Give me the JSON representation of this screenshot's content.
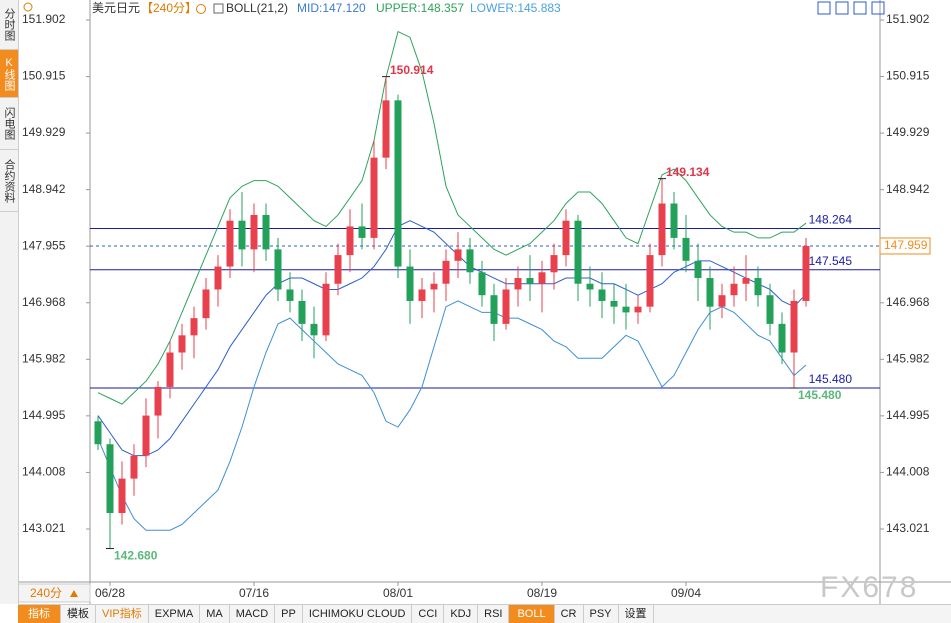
{
  "side_tabs": [
    "分时图",
    "K线图",
    "闪电图",
    "合约资料"
  ],
  "header": {
    "symbol": "美元日元",
    "period": "【240分】",
    "indicator": "BOLL(21,2)",
    "mid": "MID:147.120",
    "upper": "UPPER:148.357",
    "lower": "LOWER:145.883"
  },
  "period_button": "240分",
  "toolbar": [
    "指标",
    "模板",
    "VIP指标",
    "EXPMA",
    "MA",
    "MACD",
    "PP",
    "ICHIMOKU CLOUD",
    "CCI",
    "KDJ",
    "RSI",
    "BOLL",
    "CR",
    "PSY",
    "设置"
  ],
  "watermark": "FX678",
  "chart_data": {
    "type": "candlestick",
    "categories": [
      null,
      "06/28",
      null,
      null,
      null,
      null,
      null,
      null,
      null,
      null,
      null,
      null,
      null,
      "07/16",
      null,
      null,
      null,
      null,
      null,
      null,
      null,
      null,
      null,
      null,
      null,
      "08/01",
      null,
      null,
      null,
      null,
      null,
      null,
      null,
      null,
      null,
      null,
      null,
      "08/19",
      null,
      null,
      null,
      null,
      null,
      null,
      null,
      null,
      null,
      null,
      null,
      "09/04",
      null,
      null,
      null,
      null,
      null,
      null,
      null,
      null,
      null,
      null
    ],
    "open": [
      144.9,
      144.5,
      143.3,
      143.9,
      144.3,
      145.0,
      145.5,
      146.1,
      146.4,
      146.7,
      147.2,
      147.6,
      148.4,
      147.9,
      148.5,
      147.9,
      147.2,
      147.0,
      146.6,
      146.4,
      147.3,
      147.8,
      148.3,
      148.1,
      149.5,
      150.5,
      147.6,
      147.0,
      147.2,
      147.3,
      147.7,
      147.9,
      147.5,
      147.1,
      146.6,
      147.2,
      147.4,
      147.3,
      147.5,
      147.8,
      148.4,
      147.3,
      147.2,
      147.0,
      146.9,
      146.8,
      146.9,
      147.8,
      148.7,
      148.1,
      147.7,
      147.4,
      146.9,
      147.1,
      147.3,
      147.4,
      147.1,
      146.6,
      146.1,
      147.0
    ],
    "high": [
      145.0,
      144.6,
      144.2,
      144.5,
      145.3,
      145.6,
      146.3,
      146.6,
      146.9,
      147.4,
      147.8,
      148.6,
      148.9,
      148.7,
      148.7,
      148.1,
      147.5,
      147.2,
      146.9,
      147.5,
      148.0,
      148.6,
      148.7,
      149.8,
      150.914,
      150.6,
      147.9,
      147.4,
      147.5,
      147.9,
      148.2,
      148.1,
      147.7,
      147.3,
      147.4,
      147.6,
      147.8,
      147.7,
      148.0,
      148.6,
      148.5,
      147.6,
      147.5,
      147.3,
      147.3,
      147.1,
      148.0,
      149.134,
      148.9,
      148.5,
      148.0,
      147.6,
      147.3,
      147.6,
      147.8,
      147.6,
      147.3,
      146.8,
      147.2,
      148.1
    ],
    "low": [
      144.4,
      142.68,
      143.1,
      143.6,
      144.1,
      144.6,
      145.3,
      145.8,
      146.0,
      146.5,
      146.9,
      147.4,
      147.6,
      147.5,
      147.7,
      147.0,
      146.8,
      146.3,
      146.0,
      146.3,
      147.1,
      147.5,
      147.9,
      147.9,
      149.3,
      147.4,
      146.6,
      146.7,
      146.8,
      147.0,
      147.4,
      147.3,
      146.9,
      146.3,
      146.5,
      146.9,
      147.0,
      146.8,
      147.2,
      147.6,
      147.0,
      146.9,
      146.7,
      146.6,
      146.5,
      146.6,
      146.8,
      147.6,
      147.9,
      147.5,
      147.0,
      146.5,
      146.7,
      146.9,
      147.0,
      146.9,
      146.4,
      145.9,
      145.48,
      146.9
    ],
    "close": [
      144.5,
      143.3,
      143.9,
      144.3,
      145.0,
      145.5,
      146.1,
      146.4,
      146.7,
      147.2,
      147.6,
      148.4,
      147.9,
      148.5,
      147.9,
      147.2,
      147.0,
      146.6,
      146.4,
      147.3,
      147.8,
      148.3,
      148.1,
      149.5,
      150.5,
      147.6,
      147.0,
      147.2,
      147.3,
      147.7,
      147.9,
      147.5,
      147.1,
      146.6,
      147.2,
      147.4,
      147.3,
      147.5,
      147.8,
      148.4,
      147.3,
      147.2,
      147.0,
      146.9,
      146.8,
      146.9,
      147.8,
      148.7,
      148.1,
      147.7,
      147.4,
      146.9,
      147.1,
      147.3,
      147.4,
      147.1,
      146.6,
      146.1,
      147.0,
      147.959
    ],
    "up_color": "#e8414e",
    "down_color": "#23a05a",
    "series": [
      {
        "name": "UPPER",
        "color": "#2ea35c",
        "values": [
          145.4,
          145.3,
          145.2,
          145.4,
          145.6,
          145.9,
          146.3,
          146.8,
          147.3,
          147.8,
          148.3,
          148.8,
          149.0,
          149.1,
          149.1,
          149.0,
          148.8,
          148.6,
          148.4,
          148.3,
          148.5,
          148.8,
          149.1,
          149.8,
          150.9,
          151.7,
          151.6,
          151.0,
          150.1,
          149.0,
          148.5,
          148.3,
          148.1,
          147.9,
          147.8,
          147.9,
          148.0,
          148.2,
          148.4,
          148.7,
          148.9,
          148.9,
          148.7,
          148.4,
          148.1,
          148.0,
          148.6,
          149.2,
          149.3,
          149.1,
          148.8,
          148.5,
          148.3,
          148.2,
          148.2,
          148.1,
          148.1,
          148.2,
          148.2,
          148.357
        ]
      },
      {
        "name": "MID",
        "color": "#2b5fcc",
        "values": [
          145.0,
          144.7,
          144.4,
          144.3,
          144.3,
          144.4,
          144.6,
          144.9,
          145.2,
          145.5,
          145.8,
          146.2,
          146.5,
          146.8,
          147.1,
          147.3,
          147.4,
          147.4,
          147.3,
          147.2,
          147.2,
          147.3,
          147.4,
          147.6,
          147.9,
          148.3,
          148.4,
          148.3,
          148.2,
          148.0,
          147.8,
          147.6,
          147.5,
          147.4,
          147.3,
          147.3,
          147.3,
          147.3,
          147.3,
          147.4,
          147.4,
          147.4,
          147.3,
          147.3,
          147.2,
          147.1,
          147.2,
          147.3,
          147.5,
          147.6,
          147.7,
          147.7,
          147.6,
          147.5,
          147.4,
          147.3,
          147.2,
          147.0,
          146.9,
          147.12
        ]
      },
      {
        "name": "LOWER",
        "color": "#3d8fd6",
        "values": [
          144.6,
          144.1,
          143.6,
          143.2,
          143.0,
          143.0,
          143.0,
          143.1,
          143.3,
          143.5,
          143.7,
          144.2,
          144.8,
          145.5,
          146.1,
          146.6,
          146.7,
          146.5,
          146.3,
          146.1,
          145.9,
          145.8,
          145.7,
          145.4,
          144.9,
          144.8,
          145.1,
          145.5,
          146.2,
          146.9,
          147.0,
          146.9,
          146.8,
          146.8,
          146.7,
          146.7,
          146.6,
          146.5,
          146.3,
          146.2,
          146.0,
          146.0,
          146.0,
          146.2,
          146.4,
          146.3,
          145.9,
          145.5,
          145.7,
          146.1,
          146.5,
          146.8,
          146.9,
          146.8,
          146.6,
          146.4,
          146.3,
          146.0,
          145.7,
          145.883
        ]
      }
    ],
    "ylim": [
      142.096,
      152.216
    ],
    "yticks": [
      151.902,
      150.915,
      149.929,
      148.942,
      147.955,
      146.968,
      145.982,
      144.995,
      144.008,
      143.021
    ],
    "hlines": [
      148.264,
      147.545,
      {
        "value": 145.48,
        "label": "145.480"
      }
    ],
    "hline_color": "#1a1aa8",
    "last_price": 147.959,
    "extremes": [
      150.914,
      149.134,
      {
        "value": 142.68,
        "label": "142.680"
      },
      {
        "value": 145.48,
        "label": "145.480"
      }
    ]
  }
}
